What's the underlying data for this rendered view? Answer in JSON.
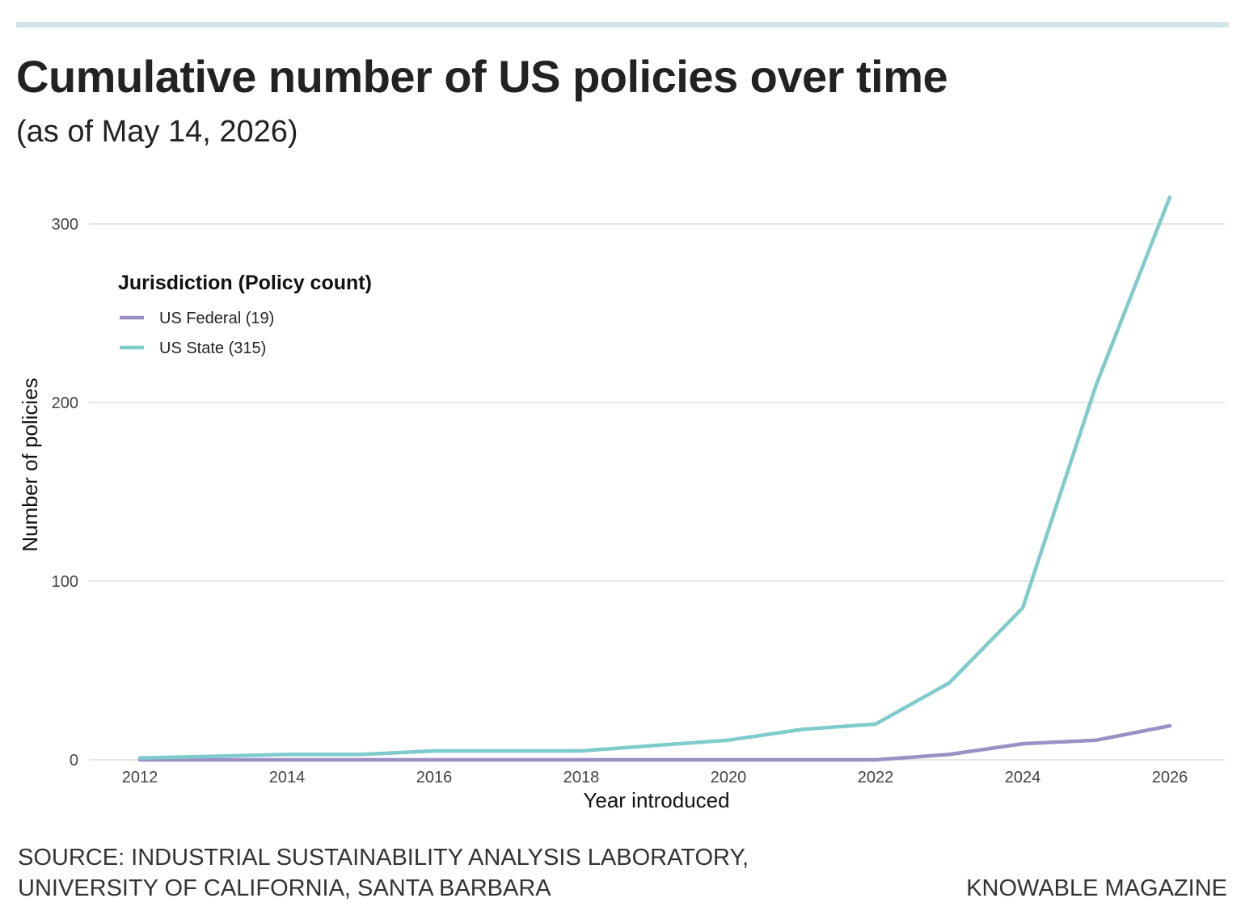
{
  "header": {
    "title": "Cumulative number of US policies over time",
    "subtitle": "(as of May 14, 2026)"
  },
  "footer": {
    "source_line1": "SOURCE: INDUSTRIAL SUSTAINABILITY ANALYSIS LABORATORY,",
    "source_line2": "UNIVERSITY OF CALIFORNIA, SANTA BARBARA",
    "credit": "KNOWABLE MAGAZINE"
  },
  "chart_data": {
    "type": "line",
    "title": "Cumulative number of US policies over time",
    "subtitle": "(as of May 14, 2026)",
    "xlabel": "Year introduced",
    "ylabel": "Number of policies",
    "xlim": [
      2011.65,
      2026.75
    ],
    "ylim": [
      0,
      315
    ],
    "x_ticks": [
      2012,
      2014,
      2016,
      2018,
      2020,
      2022,
      2024,
      2026
    ],
    "y_ticks": [
      0,
      100,
      200,
      300
    ],
    "grid": "horizontal",
    "legend": {
      "title": "Jurisdiction (Policy count)",
      "placement": "top-left"
    },
    "series": [
      {
        "name": "US Federal (19)",
        "color": "#9b8fc4",
        "x": [
          2012,
          2013,
          2014,
          2015,
          2016,
          2017,
          2018,
          2019,
          2020,
          2021,
          2022,
          2023,
          2024,
          2025,
          2026
        ],
        "values": [
          0,
          0,
          0,
          0,
          0,
          0,
          0,
          0,
          0,
          0,
          0,
          3,
          9,
          11,
          19
        ]
      },
      {
        "name": "US State (315)",
        "color": "#7ecbcc",
        "x": [
          2012,
          2013,
          2014,
          2015,
          2016,
          2017,
          2018,
          2019,
          2020,
          2021,
          2022,
          2023,
          2024,
          2025,
          2026
        ],
        "values": [
          1,
          2,
          3,
          3,
          5,
          5,
          5,
          8,
          11,
          17,
          20,
          43,
          85,
          210,
          315
        ]
      }
    ]
  }
}
